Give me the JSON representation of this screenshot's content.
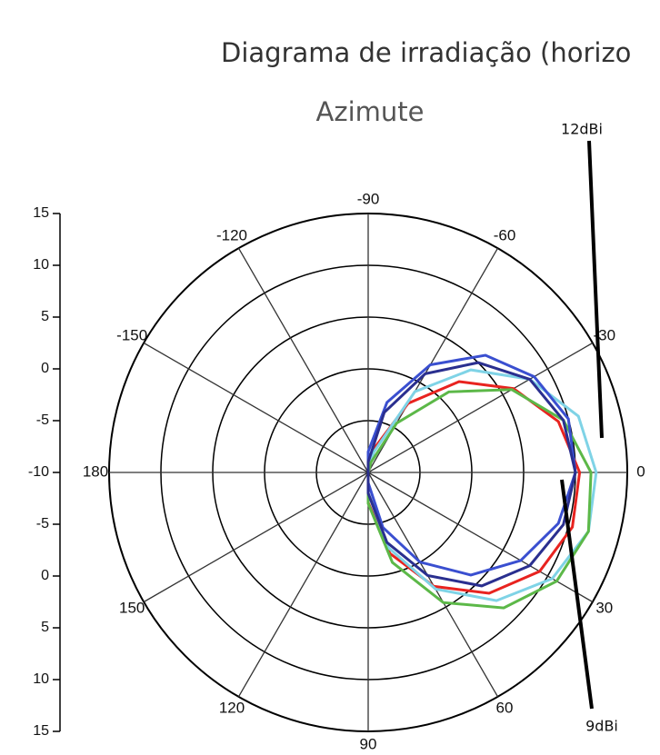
{
  "chart_data": {
    "type": "polar",
    "title": "Diagrama de irradiação (horizo",
    "subtitle": "Azimute",
    "annotations": [
      "12dBi",
      "9dBi"
    ],
    "rlim": [
      -10,
      15
    ],
    "rticks": [
      -10,
      -5,
      0,
      5,
      10,
      15
    ],
    "theta_ticks": [
      0,
      30,
      60,
      90,
      120,
      150,
      180,
      -150,
      -120,
      -90,
      -60,
      -30
    ],
    "theta": [
      -90,
      -75,
      -60,
      -45,
      -30,
      -15,
      0,
      15,
      30,
      45,
      60,
      75,
      90
    ],
    "series": [
      {
        "color": "#e8231f",
        "values": [
          -10,
          -7.5,
          -2.3,
          2.4,
          6.2,
          9.0,
          10.4,
          10.4,
          9.1,
          6.5,
          2.7,
          -1.9,
          -7.1
        ]
      },
      {
        "color": "#7fd3e6",
        "values": [
          -10,
          -8,
          -1,
          4,
          8,
          11,
          12,
          12,
          10.5,
          7.5,
          3,
          -2.5,
          -8
        ]
      },
      {
        "color": "#5cb848",
        "values": [
          -10,
          -9,
          -4.5,
          1,
          6,
          9.5,
          11.5,
          12,
          11,
          8.5,
          4.5,
          -1,
          -7
        ]
      },
      {
        "color": "#3a4fd0",
        "values": [
          -8,
          -3,
          2,
          6,
          8.5,
          10,
          10,
          9,
          7,
          4,
          0,
          -4.5,
          -9
        ]
      },
      {
        "color": "#2a2f8f",
        "values": [
          -9,
          -4,
          1,
          5,
          8,
          9.5,
          10,
          9.5,
          8,
          5.5,
          1.5,
          -3,
          -8
        ]
      }
    ]
  }
}
